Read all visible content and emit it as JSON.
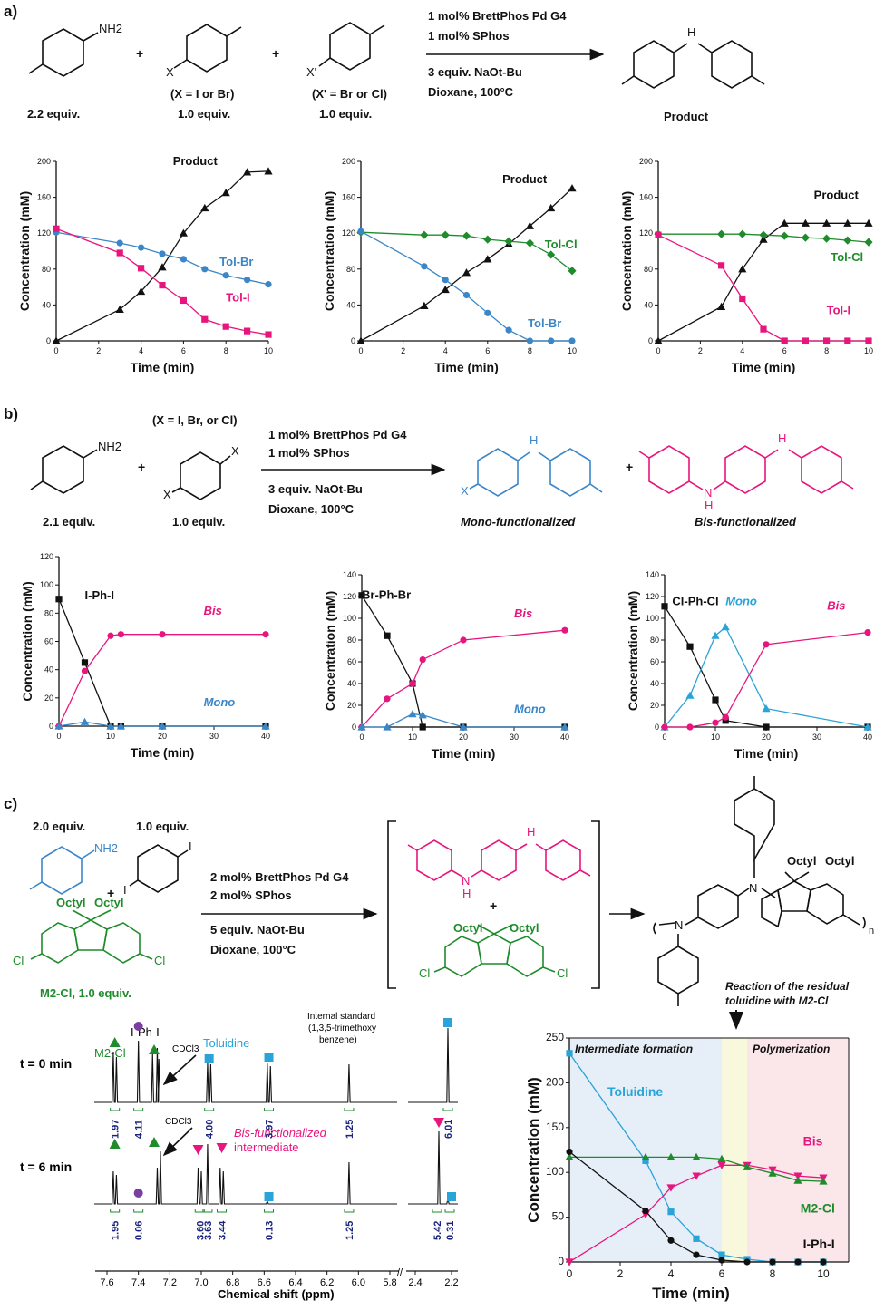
{
  "panel_labels": {
    "a": "a)",
    "b": "b)",
    "c": "c)"
  },
  "colors": {
    "black": "#111111",
    "blue": "#3a86c8",
    "pink": "#e8157e",
    "green": "#1f8c2c",
    "cyan": "#29a3d8",
    "purple": "#7a3fa0"
  },
  "schemes": {
    "a": {
      "reagents": [
        "2.2 equiv.",
        "1.0 equiv.",
        "1.0 equiv."
      ],
      "x_notes": [
        "(X = I or Br)",
        "(X' = Br or Cl)"
      ],
      "atom_labels": {
        "nh2": "NH2",
        "x": "X",
        "xp": "X'",
        "h": "H"
      },
      "conditions": [
        "1 mol% BrettPhos Pd G4",
        "1 mol% SPhos",
        "3 equiv. NaOt-Bu",
        "Dioxane, 100°C"
      ],
      "product": "Product",
      "plus": "+"
    },
    "b": {
      "reagents": [
        "2.1 equiv.",
        "1.0 equiv."
      ],
      "x_note": "(X = I, Br, or Cl)",
      "atom_labels": {
        "nh2": "NH2",
        "x": "X",
        "h": "H",
        "n": "N"
      },
      "conditions": [
        "1 mol% BrettPhos Pd G4",
        "1 mol% SPhos",
        "3 equiv. NaOt-Bu",
        "Dioxane, 100°C"
      ],
      "products": [
        "Mono-functionalized",
        "Bis-functionalized"
      ],
      "plus": "+"
    },
    "c": {
      "reagents": [
        "2.0 equiv.",
        "1.0 equiv.",
        "M2-Cl, 1.0 equiv."
      ],
      "atom_labels": {
        "nh2": "NH2",
        "i": "I",
        "cl": "Cl",
        "octyl": "Octyl",
        "n": "N",
        "h": "H",
        "sub_n": "n"
      },
      "conditions": [
        "2 mol% BrettPhos Pd G4",
        "2 mol% SPhos",
        "5 equiv. NaOt-Bu",
        "Dioxane, 100°C"
      ],
      "plus": "+",
      "annotation": [
        "Reaction of the residual",
        "toluidine with  M2-Cl"
      ]
    }
  },
  "nmr": {
    "xlabel": "Chemical shift (ppm)",
    "ticks": [
      "7.6",
      "7.4",
      "7.2",
      "7.0",
      "6.8",
      "6.6",
      "6.4",
      "6.2",
      "6.0",
      "5.8",
      "2.4",
      "2.2"
    ],
    "spectra": [
      {
        "time": "t = 0 min",
        "integrals": [
          "1.97",
          "4.11",
          "4.00",
          "3.97",
          "1.25",
          "6.01"
        ]
      },
      {
        "time": "t = 6 min",
        "integrals": [
          "1.95",
          "0.06",
          "3.60",
          "3.63",
          "3.44",
          "0.13",
          "1.25",
          "5.42",
          "0.31"
        ]
      }
    ],
    "labels": {
      "m2cl": "M2-Cl",
      "iphi": "I-Ph-I",
      "cdcl3": "CDCl3",
      "toluidine": "Toluidine",
      "std": [
        "Internal standard",
        "(1,3,5-trimethoxy",
        "benzene)"
      ],
      "bis": [
        "Bis-functionalized",
        "intermediate"
      ]
    }
  },
  "chart_data": [
    {
      "id": "a1",
      "type": "line",
      "xlabel": "Time (min)",
      "ylabel": "Concentration (mM)",
      "xlim": [
        0,
        10
      ],
      "ylim": [
        0,
        200
      ],
      "xticks": [
        0,
        2,
        4,
        6,
        8,
        10
      ],
      "yticks": [
        0,
        40,
        80,
        120,
        160,
        200
      ],
      "series": [
        {
          "name": "Product",
          "color": "#111111",
          "marker": "triangle",
          "x": [
            0,
            3,
            4,
            5,
            6,
            7,
            8,
            9,
            10
          ],
          "y": [
            0,
            35,
            55,
            82,
            120,
            148,
            165,
            188,
            189
          ]
        },
        {
          "name": "Tol-Br",
          "color": "#3a86c8",
          "marker": "circle",
          "x": [
            0,
            3,
            4,
            5,
            6,
            7,
            8,
            9,
            10
          ],
          "y": [
            121,
            109,
            104,
            97,
            91,
            80,
            73,
            68,
            63
          ]
        },
        {
          "name": "Tol-I",
          "color": "#e8157e",
          "marker": "square",
          "x": [
            0,
            3,
            4,
            5,
            6,
            7,
            8,
            9,
            10
          ],
          "y": [
            125,
            98,
            81,
            62,
            45,
            24,
            16,
            11,
            7
          ]
        }
      ]
    },
    {
      "id": "a2",
      "type": "line",
      "xlabel": "Time (min)",
      "ylabel": "Concentration (mM)",
      "xlim": [
        0,
        10
      ],
      "ylim": [
        0,
        200
      ],
      "xticks": [
        0,
        2,
        4,
        6,
        8,
        10
      ],
      "yticks": [
        0,
        40,
        80,
        120,
        160,
        200
      ],
      "series": [
        {
          "name": "Product",
          "color": "#111111",
          "marker": "triangle",
          "x": [
            0,
            3,
            4,
            5,
            6,
            7,
            8,
            9,
            10
          ],
          "y": [
            0,
            39,
            57,
            76,
            91,
            108,
            128,
            148,
            170
          ]
        },
        {
          "name": "Tol-Cl",
          "color": "#1f8c2c",
          "marker": "diamond",
          "x": [
            0,
            3,
            4,
            5,
            6,
            7,
            8,
            9,
            10
          ],
          "y": [
            121,
            118,
            118,
            117,
            113,
            111,
            109,
            96,
            78
          ]
        },
        {
          "name": "Tol-Br",
          "color": "#3a86c8",
          "marker": "circle",
          "x": [
            0,
            3,
            4,
            5,
            6,
            7,
            8,
            9,
            10
          ],
          "y": [
            122,
            83,
            68,
            51,
            31,
            12,
            0,
            0,
            0
          ]
        }
      ]
    },
    {
      "id": "a3",
      "type": "line",
      "xlabel": "Time (min)",
      "ylabel": "Concentration (mM)",
      "xlim": [
        0,
        10
      ],
      "ylim": [
        0,
        200
      ],
      "xticks": [
        0,
        2,
        4,
        6,
        8,
        10
      ],
      "yticks": [
        0,
        40,
        80,
        120,
        160,
        200
      ],
      "series": [
        {
          "name": "Product",
          "color": "#111111",
          "marker": "triangle",
          "x": [
            0,
            3,
            4,
            5,
            6,
            7,
            8,
            9,
            10
          ],
          "y": [
            0,
            38,
            80,
            113,
            131,
            131,
            131,
            131,
            131
          ]
        },
        {
          "name": "Tol-Cl",
          "color": "#1f8c2c",
          "marker": "diamond",
          "x": [
            0,
            3,
            4,
            5,
            6,
            7,
            8,
            9,
            10
          ],
          "y": [
            119,
            119,
            119,
            118,
            117,
            115,
            114,
            112,
            110
          ]
        },
        {
          "name": "Tol-I",
          "color": "#e8157e",
          "marker": "square",
          "x": [
            0,
            3,
            4,
            5,
            6,
            7,
            8,
            9,
            10
          ],
          "y": [
            118,
            84,
            47,
            13,
            0,
            0,
            0,
            0,
            0
          ]
        }
      ]
    },
    {
      "id": "b1",
      "type": "line",
      "xlabel": "Time (min)",
      "ylabel": "Concentration (mM)",
      "xlim": [
        0,
        40
      ],
      "ylim": [
        0,
        120
      ],
      "xticks": [
        0,
        10,
        20,
        30,
        40
      ],
      "yticks": [
        0,
        20,
        40,
        60,
        80,
        100,
        120
      ],
      "series": [
        {
          "name": "I-Ph-I",
          "color": "#111111",
          "marker": "square",
          "x": [
            0,
            5,
            10,
            12,
            20,
            40
          ],
          "y": [
            90,
            45,
            0,
            0,
            0,
            0
          ]
        },
        {
          "name": "Bis",
          "color": "#e8157e",
          "marker": "circle",
          "x": [
            0,
            5,
            10,
            12,
            20,
            40
          ],
          "y": [
            0,
            39,
            64,
            65,
            65,
            65
          ]
        },
        {
          "name": "Mono",
          "color": "#3a86c8",
          "marker": "triangle",
          "x": [
            0,
            5,
            10,
            12,
            20,
            40
          ],
          "y": [
            0,
            3,
            0,
            0,
            0,
            0
          ]
        }
      ]
    },
    {
      "id": "b2",
      "type": "line",
      "xlabel": "Time (min)",
      "ylabel": "Concentration (mM)",
      "xlim": [
        0,
        40
      ],
      "ylim": [
        0,
        140
      ],
      "xticks": [
        0,
        10,
        20,
        30,
        40
      ],
      "yticks": [
        0,
        20,
        40,
        60,
        80,
        100,
        120,
        140
      ],
      "series": [
        {
          "name": "Br-Ph-Br",
          "color": "#111111",
          "marker": "square",
          "x": [
            0,
            5,
            10,
            12,
            20,
            40
          ],
          "y": [
            121,
            84,
            40,
            0,
            0,
            0
          ]
        },
        {
          "name": "Bis",
          "color": "#e8157e",
          "marker": "circle",
          "x": [
            0,
            5,
            10,
            12,
            20,
            40
          ],
          "y": [
            0,
            26,
            40,
            62,
            80,
            89
          ]
        },
        {
          "name": "Mono",
          "color": "#3a86c8",
          "marker": "triangle",
          "x": [
            0,
            5,
            10,
            12,
            20,
            40
          ],
          "y": [
            0,
            0,
            12,
            11,
            0,
            0
          ]
        }
      ]
    },
    {
      "id": "b3",
      "type": "line",
      "xlabel": "Time (min)",
      "ylabel": "Concentration (mM)",
      "xlim": [
        0,
        40
      ],
      "ylim": [
        0,
        140
      ],
      "xticks": [
        0,
        10,
        20,
        30,
        40
      ],
      "yticks": [
        0,
        20,
        40,
        60,
        80,
        100,
        120,
        140
      ],
      "series": [
        {
          "name": "Cl-Ph-Cl",
          "color": "#111111",
          "marker": "square",
          "x": [
            0,
            5,
            10,
            12,
            20,
            40
          ],
          "y": [
            111,
            74,
            25,
            6,
            0,
            0
          ]
        },
        {
          "name": "Mono",
          "color": "#29a3d8",
          "marker": "triangle",
          "x": [
            0,
            5,
            10,
            12,
            20,
            40
          ],
          "y": [
            0,
            29,
            84,
            92,
            17,
            0
          ]
        },
        {
          "name": "Bis",
          "color": "#e8157e",
          "marker": "circle",
          "x": [
            0,
            5,
            10,
            12,
            20,
            40
          ],
          "y": [
            0,
            0,
            4,
            9,
            76,
            87
          ]
        }
      ]
    },
    {
      "id": "c1",
      "type": "line",
      "xlabel": "Time (min)",
      "ylabel": "Concentration (mM)",
      "xlim": [
        0,
        11
      ],
      "ylim": [
        0,
        250
      ],
      "xticks": [
        0,
        2,
        4,
        6,
        8,
        10
      ],
      "yticks": [
        0,
        50,
        100,
        150,
        200,
        250
      ],
      "regions": [
        {
          "label": "Intermediate formation",
          "from": 0,
          "to": 6,
          "color": "#e6eef7"
        },
        {
          "label": "",
          "from": 6,
          "to": 7,
          "color": "#f8f8dc"
        },
        {
          "label": "Polymerization",
          "from": 7,
          "to": 11,
          "color": "#fbe6ea"
        }
      ],
      "series": [
        {
          "name": "Toluidine",
          "color": "#29a3d8",
          "marker": "square",
          "x": [
            0,
            3,
            4,
            5,
            6,
            7,
            8,
            9,
            10
          ],
          "y": [
            233,
            113,
            56,
            26,
            8,
            3,
            0,
            0,
            0
          ]
        },
        {
          "name": "Bis",
          "color": "#e8157e",
          "marker": "triangle-down",
          "x": [
            0,
            3,
            4,
            5,
            6,
            7,
            8,
            9,
            10
          ],
          "y": [
            0,
            53,
            83,
            96,
            108,
            108,
            103,
            96,
            94
          ]
        },
        {
          "name": "M2-Cl",
          "color": "#1f8c2c",
          "marker": "triangle",
          "x": [
            0,
            3,
            4,
            5,
            6,
            7,
            8,
            9,
            10
          ],
          "y": [
            117,
            117,
            117,
            117,
            115,
            106,
            99,
            91,
            90
          ]
        },
        {
          "name": "I-Ph-I",
          "color": "#111111",
          "marker": "circle",
          "x": [
            0,
            3,
            4,
            5,
            6,
            7,
            8,
            9,
            10
          ],
          "y": [
            123,
            57,
            24,
            8,
            2,
            0,
            0,
            0,
            0
          ]
        }
      ]
    }
  ]
}
